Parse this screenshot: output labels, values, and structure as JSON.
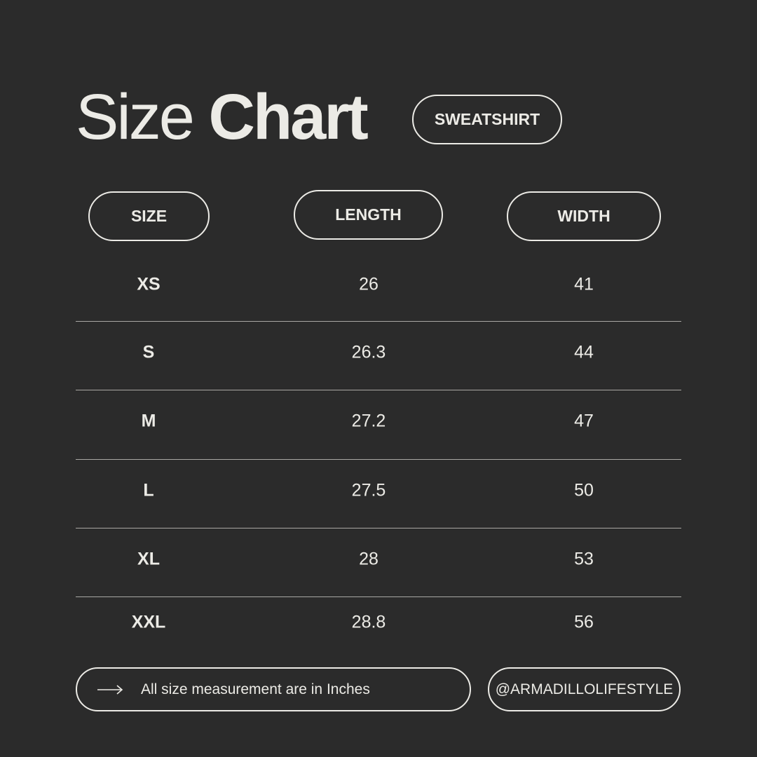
{
  "title": {
    "light": "Size",
    "bold": "Chart"
  },
  "product_badge": "SWEATSHIRT",
  "table": {
    "headers": [
      "SIZE",
      "LENGTH",
      "WIDTH"
    ],
    "rows": [
      {
        "size": "XS",
        "length": "26",
        "width": "41"
      },
      {
        "size": "S",
        "length": "26.3",
        "width": "44"
      },
      {
        "size": "M",
        "length": "27.2",
        "width": "47"
      },
      {
        "size": "L",
        "length": "27.5",
        "width": "50"
      },
      {
        "size": "XL",
        "length": "28",
        "width": "53"
      },
      {
        "size": "XXL",
        "length": "28.8",
        "width": "56"
      }
    ]
  },
  "footer": {
    "arrow_icon": "arrow-right-icon",
    "note": "All size measurement are in Inches",
    "handle": "@ARMADILLOLIFESTYLE"
  },
  "colors": {
    "background": "#2b2b2b",
    "text": "#ecebe6"
  }
}
